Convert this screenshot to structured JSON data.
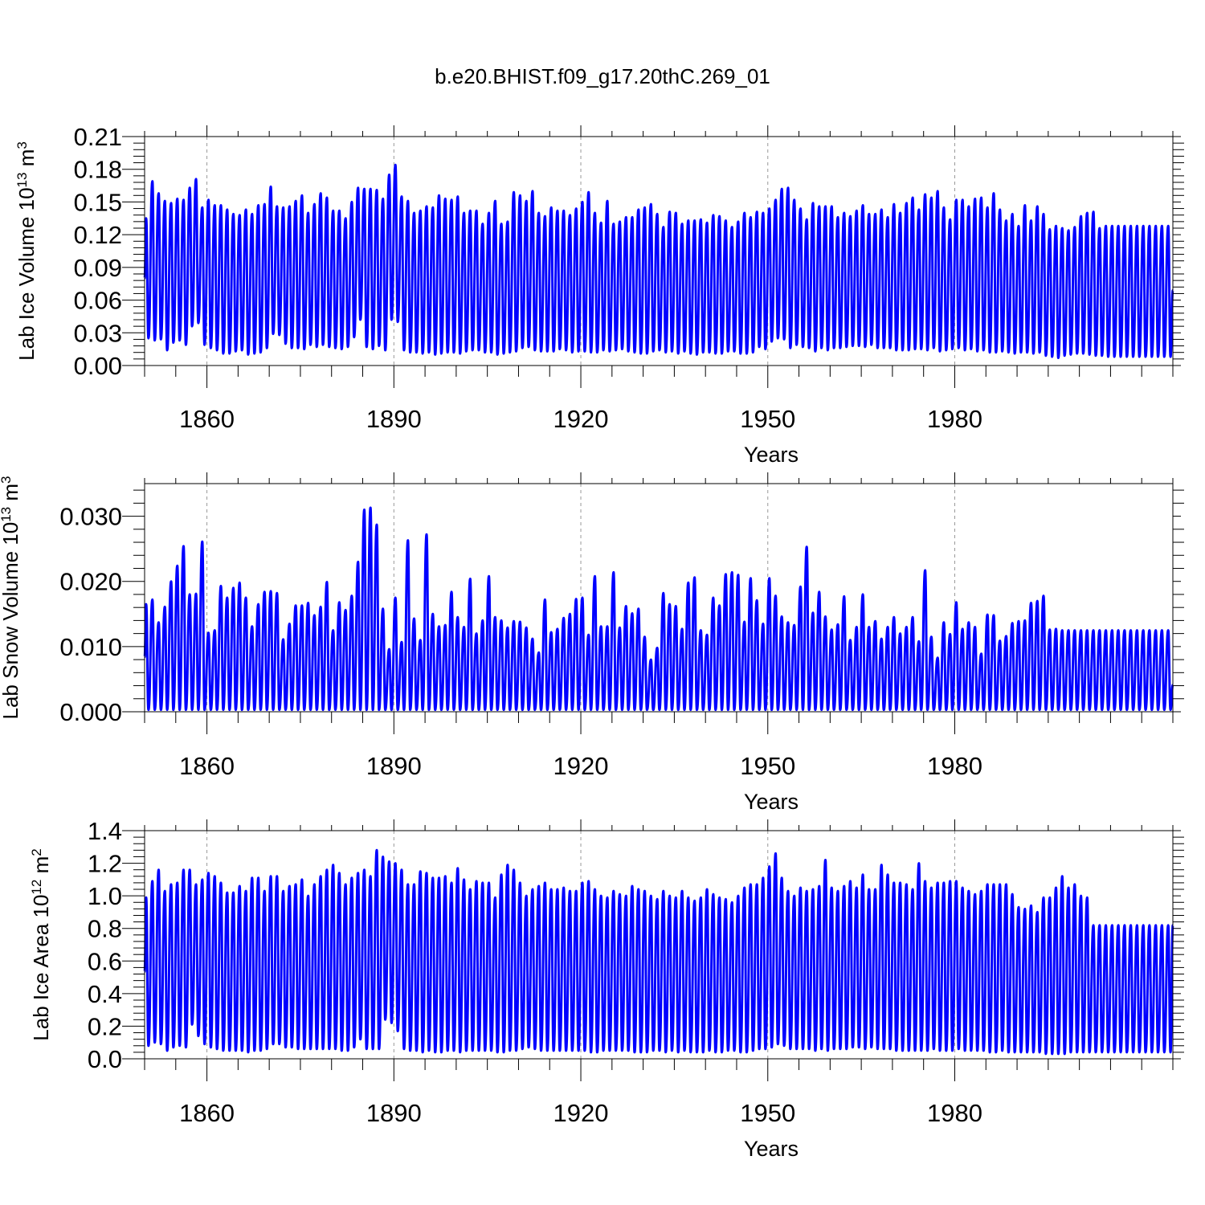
{
  "title": "b.e20.BHIST.f09_g17.20thC.269_01",
  "colors": {
    "line": "#0000ff",
    "axis": "#000000",
    "grid": "#999999"
  },
  "chart_data": [
    {
      "type": "line",
      "ylabel_main": "Lab Ice Volume 10",
      "ylabel_exp": "13",
      "ylabel_unit": " m",
      "ylabel_unit_exp": "3",
      "xlabel": "Years",
      "xlim": [
        1850,
        2015
      ],
      "xticks": [
        1860,
        1890,
        1920,
        1950,
        1980
      ],
      "xtick_labels": [
        "1860",
        "1890",
        "1920",
        "1950",
        "1980"
      ],
      "ylim": [
        0.0,
        0.21
      ],
      "yticks": [
        0.0,
        0.03,
        0.06,
        0.09,
        0.12,
        0.15,
        0.18,
        0.21
      ],
      "ytick_labels": [
        "0.00",
        "0.03",
        "0.06",
        "0.09",
        "0.12",
        "0.15",
        "0.18",
        "0.21"
      ],
      "grid_x": true,
      "series": [
        {
          "name": "Lab Ice Volume",
          "seasonal_cycle": true,
          "x_start": 1850,
          "x_end": 2015,
          "annual_max": [
            0.135,
            0.169,
            0.158,
            0.151,
            0.149,
            0.153,
            0.152,
            0.163,
            0.171,
            0.145,
            0.152,
            0.147,
            0.147,
            0.143,
            0.139,
            0.138,
            0.143,
            0.139,
            0.147,
            0.148,
            0.164,
            0.146,
            0.145,
            0.146,
            0.151,
            0.156,
            0.14,
            0.148,
            0.158,
            0.154,
            0.142,
            0.142,
            0.135,
            0.15,
            0.163,
            0.162,
            0.162,
            0.161,
            0.153,
            0.175,
            0.184,
            0.155,
            0.151,
            0.14,
            0.142,
            0.146,
            0.145,
            0.156,
            0.153,
            0.152,
            0.155,
            0.14,
            0.142,
            0.142,
            0.13,
            0.14,
            0.151,
            0.13,
            0.132,
            0.159,
            0.156,
            0.151,
            0.16,
            0.14,
            0.137,
            0.145,
            0.142,
            0.142,
            0.138,
            0.144,
            0.15,
            0.159,
            0.14,
            0.131,
            0.151,
            0.13,
            0.132,
            0.136,
            0.136,
            0.143,
            0.145,
            0.148,
            0.139,
            0.127,
            0.141,
            0.14,
            0.13,
            0.133,
            0.133,
            0.134,
            0.131,
            0.138,
            0.137,
            0.133,
            0.127,
            0.132,
            0.14,
            0.136,
            0.141,
            0.14,
            0.144,
            0.152,
            0.162,
            0.163,
            0.152,
            0.144,
            0.134,
            0.149,
            0.146,
            0.146,
            0.146,
            0.136,
            0.14,
            0.137,
            0.142,
            0.147,
            0.139,
            0.139,
            0.143,
            0.136,
            0.148,
            0.14,
            0.149,
            0.154,
            0.143,
            0.157,
            0.154,
            0.16,
            0.145,
            0.134,
            0.152,
            0.152,
            0.146,
            0.153,
            0.154,
            0.145,
            0.158,
            0.143,
            0.133,
            0.139,
            0.128,
            0.147,
            0.133,
            0.146,
            0.139,
            0.125,
            0.128,
            0.126,
            0.124,
            0.127,
            0.137,
            0.14,
            0.141,
            0.126,
            0.128
          ],
          "annual_min": [
            0.025,
            0.023,
            0.024,
            0.014,
            0.021,
            0.023,
            0.019,
            0.036,
            0.039,
            0.019,
            0.016,
            0.014,
            0.011,
            0.011,
            0.013,
            0.014,
            0.01,
            0.011,
            0.012,
            0.016,
            0.029,
            0.028,
            0.02,
            0.016,
            0.016,
            0.015,
            0.019,
            0.017,
            0.019,
            0.017,
            0.016,
            0.015,
            0.017,
            0.026,
            0.042,
            0.017,
            0.015,
            0.018,
            0.014,
            0.042,
            0.04,
            0.014,
            0.012,
            0.012,
            0.011,
            0.012,
            0.01,
            0.011,
            0.012,
            0.012,
            0.011,
            0.013,
            0.014,
            0.014,
            0.012,
            0.012,
            0.01,
            0.011,
            0.012,
            0.013,
            0.016,
            0.017,
            0.014,
            0.013,
            0.013,
            0.013,
            0.015,
            0.014,
            0.012,
            0.013,
            0.013,
            0.012,
            0.012,
            0.014,
            0.013,
            0.014,
            0.015,
            0.013,
            0.012,
            0.011,
            0.011,
            0.013,
            0.014,
            0.012,
            0.013,
            0.011,
            0.013,
            0.011,
            0.01,
            0.012,
            0.012,
            0.011,
            0.011,
            0.013,
            0.013,
            0.011,
            0.011,
            0.012,
            0.017,
            0.015,
            0.022,
            0.025,
            0.024,
            0.016,
            0.019,
            0.017,
            0.016,
            0.013,
            0.016,
            0.014,
            0.016,
            0.016,
            0.017,
            0.018,
            0.018,
            0.017,
            0.019,
            0.016,
            0.016,
            0.016,
            0.014,
            0.014,
            0.014,
            0.015,
            0.015,
            0.014,
            0.016,
            0.013,
            0.014,
            0.015,
            0.016,
            0.014,
            0.015,
            0.013,
            0.014,
            0.012,
            0.012,
            0.013,
            0.012,
            0.011,
            0.012,
            0.012,
            0.011,
            0.012,
            0.009,
            0.008,
            0.007,
            0.009,
            0.01,
            0.011,
            0.011,
            0.01,
            0.009,
            0.009,
            0.008
          ],
          "end_value": 0.069
        }
      ]
    },
    {
      "type": "line",
      "ylabel_main": "Lab Snow Volume 10",
      "ylabel_exp": "13",
      "ylabel_unit": " m",
      "ylabel_unit_exp": "3",
      "xlabel": "Years",
      "xlim": [
        1850,
        2015
      ],
      "xticks": [
        1860,
        1890,
        1920,
        1950,
        1980
      ],
      "xtick_labels": [
        "1860",
        "1890",
        "1920",
        "1950",
        "1980"
      ],
      "ylim": [
        0.0,
        0.035
      ],
      "yticks": [
        0.0,
        0.01,
        0.02,
        0.03
      ],
      "ytick_labels": [
        "0.000",
        "0.010",
        "0.020",
        "0.030"
      ],
      "grid_x": true,
      "series": [
        {
          "name": "Lab Snow Volume",
          "seasonal_cycle": true,
          "x_start": 1850,
          "x_end": 2015,
          "annual_max": [
            0.0165,
            0.0172,
            0.0137,
            0.0161,
            0.02,
            0.0224,
            0.0254,
            0.018,
            0.0181,
            0.0261,
            0.0121,
            0.0125,
            0.0193,
            0.0175,
            0.019,
            0.0198,
            0.0175,
            0.0131,
            0.0165,
            0.0184,
            0.0185,
            0.0182,
            0.0111,
            0.0135,
            0.0163,
            0.0163,
            0.0167,
            0.0148,
            0.0161,
            0.0199,
            0.0125,
            0.0168,
            0.0156,
            0.0178,
            0.023,
            0.031,
            0.0313,
            0.0287,
            0.0158,
            0.0096,
            0.0175,
            0.0107,
            0.0263,
            0.0143,
            0.011,
            0.0272,
            0.015,
            0.0131,
            0.0133,
            0.0184,
            0.0145,
            0.013,
            0.0204,
            0.012,
            0.014,
            0.0208,
            0.0145,
            0.014,
            0.0129,
            0.0139,
            0.0138,
            0.0129,
            0.0112,
            0.0091,
            0.0172,
            0.0122,
            0.0127,
            0.0144,
            0.015,
            0.0173,
            0.0175,
            0.0118,
            0.0208,
            0.0131,
            0.0131,
            0.0214,
            0.0129,
            0.0162,
            0.0151,
            0.0158,
            0.0115,
            0.008,
            0.0098,
            0.0182,
            0.0165,
            0.0162,
            0.0127,
            0.0198,
            0.0206,
            0.0125,
            0.0118,
            0.0175,
            0.0163,
            0.0211,
            0.0214,
            0.021,
            0.0138,
            0.0205,
            0.0171,
            0.0135,
            0.0205,
            0.0178,
            0.0146,
            0.0137,
            0.0133,
            0.0192,
            0.0253,
            0.0152,
            0.0184,
            0.0146,
            0.0126,
            0.0134,
            0.0177,
            0.011,
            0.013,
            0.018,
            0.013,
            0.0139,
            0.0112,
            0.013,
            0.0145,
            0.012,
            0.013,
            0.0145,
            0.0108,
            0.0217,
            0.0115,
            0.0083,
            0.0137,
            0.0119,
            0.0168,
            0.0127,
            0.0137,
            0.013,
            0.0089,
            0.0149,
            0.0148,
            0.0109,
            0.0116,
            0.0136,
            0.0139,
            0.014,
            0.0167,
            0.017,
            0.0178,
            0.0126,
            0.0127,
            0.0125,
            0.0125,
            0.0125,
            0.0125,
            0.0125,
            0.0125,
            0.0125,
            0.0125
          ],
          "annual_min": [
            0.0003
          ],
          "end_value": 0.0041
        }
      ]
    },
    {
      "type": "line",
      "ylabel_main": "Lab Ice Area 10",
      "ylabel_exp": "12",
      "ylabel_unit": " m",
      "ylabel_unit_exp": "2",
      "xlabel": "Years",
      "xlim": [
        1850,
        2015
      ],
      "xticks": [
        1860,
        1890,
        1920,
        1950,
        1980
      ],
      "xtick_labels": [
        "1860",
        "1890",
        "1920",
        "1950",
        "1980"
      ],
      "ylim": [
        0.0,
        1.4
      ],
      "yticks": [
        0.0,
        0.2,
        0.4,
        0.6,
        0.8,
        1.0,
        1.2,
        1.4
      ],
      "ytick_labels": [
        "0.0",
        "0.2",
        "0.4",
        "0.6",
        "0.8",
        "1.0",
        "1.2",
        "1.4"
      ],
      "grid_x": true,
      "series": [
        {
          "name": "Lab Ice Area",
          "seasonal_cycle": true,
          "x_start": 1850,
          "x_end": 2015,
          "annual_max": [
            0.99,
            1.09,
            1.16,
            1.03,
            1.07,
            1.08,
            1.16,
            1.16,
            1.07,
            1.1,
            1.14,
            1.12,
            1.08,
            1.02,
            1.02,
            1.06,
            1.03,
            1.11,
            1.11,
            1.03,
            1.12,
            1.12,
            1.03,
            1.06,
            1.07,
            1.1,
            1.0,
            1.07,
            1.12,
            1.16,
            1.19,
            1.14,
            1.07,
            1.11,
            1.14,
            1.16,
            1.12,
            1.28,
            1.24,
            1.21,
            1.2,
            1.16,
            1.07,
            1.07,
            1.15,
            1.14,
            1.11,
            1.11,
            1.12,
            1.08,
            1.17,
            1.1,
            1.04,
            1.09,
            1.08,
            1.08,
            0.99,
            1.13,
            1.19,
            1.16,
            1.08,
            1.0,
            1.04,
            1.06,
            1.08,
            1.04,
            1.04,
            1.05,
            1.03,
            1.03,
            1.08,
            1.09,
            1.04,
            1.0,
            0.99,
            1.03,
            1.01,
            1.0,
            1.06,
            1.04,
            1.03,
            1.0,
            0.98,
            1.03,
            1.0,
            0.99,
            1.03,
            0.99,
            0.97,
            0.99,
            1.04,
            1.01,
            0.99,
            0.98,
            0.96,
            1.0,
            1.05,
            1.07,
            1.07,
            1.11,
            1.18,
            1.26,
            1.11,
            1.03,
            1.0,
            1.05,
            1.03,
            1.04,
            1.06,
            1.22,
            1.05,
            1.03,
            1.06,
            1.09,
            1.05,
            1.13,
            1.04,
            1.04,
            1.19,
            1.13,
            1.08,
            1.08,
            1.07,
            1.04,
            1.2,
            1.09,
            1.05,
            1.08,
            1.08,
            1.09,
            1.09,
            1.05,
            1.03,
            1.01,
            1.03,
            1.07,
            1.07,
            1.07,
            1.07,
            1.01,
            0.93,
            0.92,
            0.94,
            0.9,
            0.99,
            0.99,
            1.05,
            1.12,
            1.05,
            1.07,
            1.0,
            0.99,
            0.82,
            0.82,
            0.82
          ],
          "annual_min": [
            0.08,
            0.1,
            0.09,
            0.05,
            0.07,
            0.08,
            0.07,
            0.21,
            0.14,
            0.09,
            0.07,
            0.06,
            0.05,
            0.05,
            0.05,
            0.05,
            0.04,
            0.05,
            0.05,
            0.06,
            0.09,
            0.09,
            0.07,
            0.07,
            0.06,
            0.06,
            0.06,
            0.06,
            0.06,
            0.06,
            0.06,
            0.05,
            0.05,
            0.07,
            0.12,
            0.06,
            0.06,
            0.06,
            0.24,
            0.22,
            0.17,
            0.06,
            0.05,
            0.05,
            0.04,
            0.05,
            0.04,
            0.04,
            0.05,
            0.05,
            0.04,
            0.05,
            0.05,
            0.05,
            0.05,
            0.05,
            0.04,
            0.04,
            0.05,
            0.05,
            0.06,
            0.07,
            0.06,
            0.05,
            0.05,
            0.05,
            0.05,
            0.05,
            0.05,
            0.05,
            0.05,
            0.04,
            0.04,
            0.05,
            0.05,
            0.05,
            0.05,
            0.05,
            0.04,
            0.04,
            0.04,
            0.05,
            0.05,
            0.04,
            0.05,
            0.04,
            0.05,
            0.04,
            0.04,
            0.04,
            0.05,
            0.04,
            0.04,
            0.05,
            0.05,
            0.04,
            0.04,
            0.05,
            0.06,
            0.06,
            0.07,
            0.09,
            0.08,
            0.06,
            0.06,
            0.06,
            0.06,
            0.05,
            0.06,
            0.05,
            0.06,
            0.06,
            0.06,
            0.07,
            0.07,
            0.06,
            0.07,
            0.06,
            0.06,
            0.06,
            0.05,
            0.05,
            0.05,
            0.05,
            0.05,
            0.05,
            0.06,
            0.05,
            0.05,
            0.05,
            0.06,
            0.05,
            0.05,
            0.05,
            0.05,
            0.04,
            0.04,
            0.05,
            0.04,
            0.04,
            0.04,
            0.04,
            0.04,
            0.04,
            0.03,
            0.03,
            0.03,
            0.03,
            0.04,
            0.04,
            0.04,
            0.04,
            0.04,
            0.04,
            0.04
          ],
          "end_value": 0.82
        }
      ]
    }
  ]
}
